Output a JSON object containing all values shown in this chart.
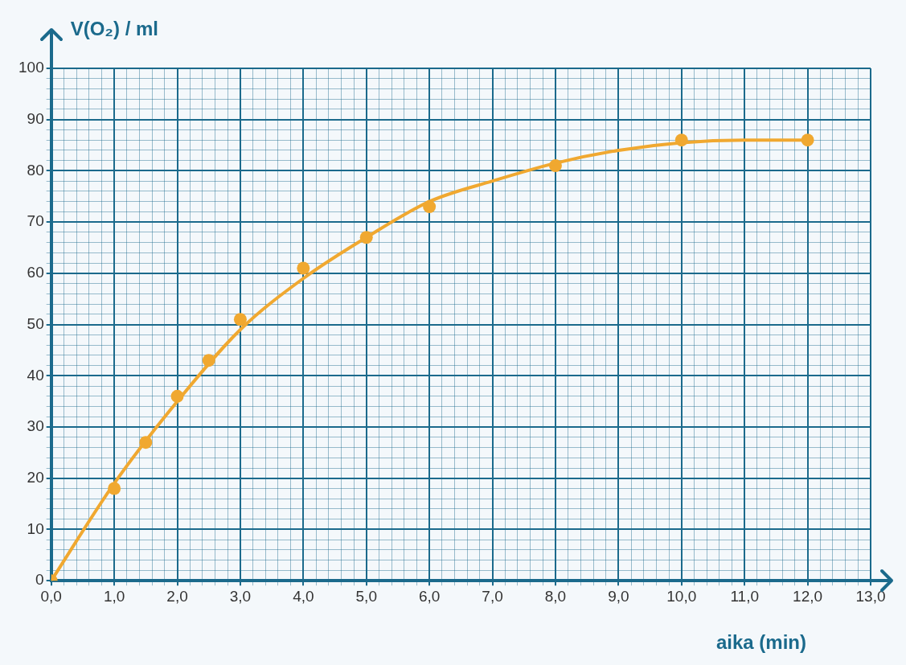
{
  "chart_data": {
    "type": "scatter",
    "xlabel": "aika (min)",
    "ylabel": "V(O₂) / ml",
    "xlim": [
      0,
      13
    ],
    "ylim": [
      0,
      100
    ],
    "xticks": [
      {
        "value": 0,
        "label": "0,0"
      },
      {
        "value": 0.2,
        "label": null
      },
      {
        "value": 0.4,
        "label": null
      },
      {
        "value": 0.6,
        "label": null
      },
      {
        "value": 0.8,
        "label": null
      },
      {
        "value": 1,
        "label": "1,0"
      },
      {
        "value": 1.2,
        "label": null
      },
      {
        "value": 1.4,
        "label": null
      },
      {
        "value": 1.6,
        "label": null
      },
      {
        "value": 1.8,
        "label": null
      },
      {
        "value": 2,
        "label": "2,0"
      },
      {
        "value": 2.2,
        "label": null
      },
      {
        "value": 2.4,
        "label": null
      },
      {
        "value": 2.6,
        "label": null
      },
      {
        "value": 2.8,
        "label": null
      },
      {
        "value": 3,
        "label": "3,0"
      },
      {
        "value": 3.2,
        "label": null
      },
      {
        "value": 3.4,
        "label": null
      },
      {
        "value": 3.6,
        "label": null
      },
      {
        "value": 3.8,
        "label": null
      },
      {
        "value": 4,
        "label": "4,0"
      },
      {
        "value": 4.2,
        "label": null
      },
      {
        "value": 4.4,
        "label": null
      },
      {
        "value": 4.6,
        "label": null
      },
      {
        "value": 4.8,
        "label": null
      },
      {
        "value": 5,
        "label": "5,0"
      },
      {
        "value": 5.2,
        "label": null
      },
      {
        "value": 5.4,
        "label": null
      },
      {
        "value": 5.6,
        "label": null
      },
      {
        "value": 5.8,
        "label": null
      },
      {
        "value": 6,
        "label": "6,0"
      },
      {
        "value": 6.2,
        "label": null
      },
      {
        "value": 6.4,
        "label": null
      },
      {
        "value": 6.6,
        "label": null
      },
      {
        "value": 6.8,
        "label": null
      },
      {
        "value": 7,
        "label": "7,0"
      },
      {
        "value": 7.2,
        "label": null
      },
      {
        "value": 7.4,
        "label": null
      },
      {
        "value": 7.6,
        "label": null
      },
      {
        "value": 7.8,
        "label": null
      },
      {
        "value": 8,
        "label": "8,0"
      },
      {
        "value": 8.2,
        "label": null
      },
      {
        "value": 8.4,
        "label": null
      },
      {
        "value": 8.6,
        "label": null
      },
      {
        "value": 8.8,
        "label": null
      },
      {
        "value": 9,
        "label": "9,0"
      },
      {
        "value": 9.2,
        "label": null
      },
      {
        "value": 9.4,
        "label": null
      },
      {
        "value": 9.6,
        "label": null
      },
      {
        "value": 9.8,
        "label": null
      },
      {
        "value": 10,
        "label": "10,0"
      },
      {
        "value": 10.2,
        "label": null
      },
      {
        "value": 10.4,
        "label": null
      },
      {
        "value": 10.6,
        "label": null
      },
      {
        "value": 10.8,
        "label": null
      },
      {
        "value": 11,
        "label": "11,0"
      },
      {
        "value": 11.2,
        "label": null
      },
      {
        "value": 11.4,
        "label": null
      },
      {
        "value": 11.6,
        "label": null
      },
      {
        "value": 11.8,
        "label": null
      },
      {
        "value": 12,
        "label": "12,0"
      },
      {
        "value": 12.2,
        "label": null
      },
      {
        "value": 12.4,
        "label": null
      },
      {
        "value": 12.6,
        "label": null
      },
      {
        "value": 12.8,
        "label": null
      },
      {
        "value": 13,
        "label": "13,0"
      }
    ],
    "yticks": [
      0,
      {
        "value": 2,
        "label": null
      },
      {
        "value": 4,
        "label": null
      },
      {
        "value": 6,
        "label": null
      },
      {
        "value": 8,
        "label": null
      },
      10,
      {
        "value": 12,
        "label": null
      },
      {
        "value": 14,
        "label": null
      },
      {
        "value": 16,
        "label": null
      },
      {
        "value": 18,
        "label": null
      },
      20,
      {
        "value": 22,
        "label": null
      },
      {
        "value": 24,
        "label": null
      },
      {
        "value": 26,
        "label": null
      },
      {
        "value": 28,
        "label": null
      },
      30,
      {
        "value": 32,
        "label": null
      },
      {
        "value": 34,
        "label": null
      },
      {
        "value": 36,
        "label": null
      },
      {
        "value": 38,
        "label": null
      },
      40,
      {
        "value": 42,
        "label": null
      },
      {
        "value": 44,
        "label": null
      },
      {
        "value": 46,
        "label": null
      },
      {
        "value": 48,
        "label": null
      },
      50,
      {
        "value": 52,
        "label": null
      },
      {
        "value": 54,
        "label": null
      },
      {
        "value": 56,
        "label": null
      },
      {
        "value": 58,
        "label": null
      },
      60,
      {
        "value": 62,
        "label": null
      },
      {
        "value": 64,
        "label": null
      },
      {
        "value": 66,
        "label": null
      },
      {
        "value": 68,
        "label": null
      },
      70,
      {
        "value": 72,
        "label": null
      },
      {
        "value": 74,
        "label": null
      },
      {
        "value": 76,
        "label": null
      },
      {
        "value": 78,
        "label": null
      },
      80,
      {
        "value": 82,
        "label": null
      },
      {
        "value": 84,
        "label": null
      },
      {
        "value": 86,
        "label": null
      },
      {
        "value": 88,
        "label": null
      },
      90,
      {
        "value": 92,
        "label": null
      },
      {
        "value": 94,
        "label": null
      },
      {
        "value": 96,
        "label": null
      },
      {
        "value": 98,
        "label": null
      },
      100
    ],
    "grid": true,
    "legend": false,
    "series": [
      {
        "type": "line",
        "marker": "none",
        "color": "#f0a830",
        "x": [
          0,
          1,
          2,
          3,
          4,
          5,
          6,
          7,
          8,
          9,
          10,
          11,
          12
        ],
        "values": [
          0,
          19,
          35,
          49,
          59,
          67,
          74,
          78,
          81.5,
          84,
          85.5,
          86,
          86
        ]
      },
      {
        "type": "scatter",
        "marker": "circle",
        "color": "#f0a830",
        "x": [
          0,
          1,
          1.5,
          2,
          2.5,
          3,
          4,
          5,
          6,
          8,
          10,
          12
        ],
        "values": [
          0,
          18,
          27,
          36,
          43,
          51,
          61,
          67,
          73,
          81,
          86,
          86
        ]
      }
    ]
  }
}
